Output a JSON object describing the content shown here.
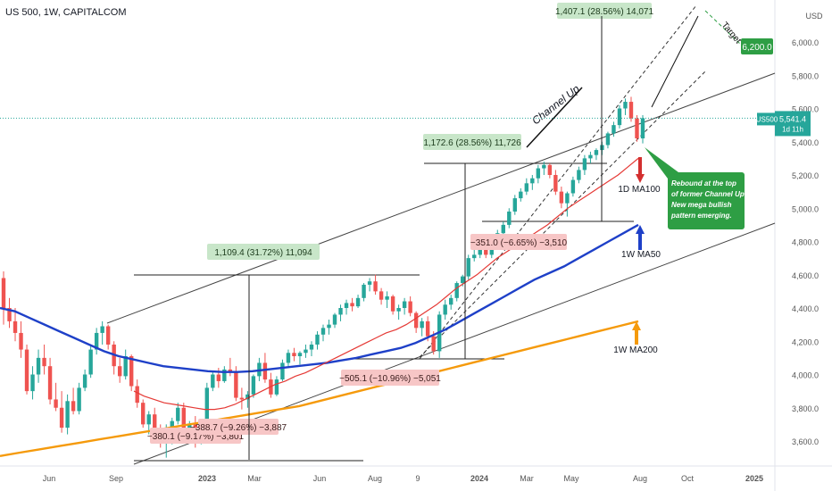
{
  "chart_data": {
    "type": "candlestick",
    "title": "US 500, 1W, CAPITALCOM",
    "currency": "USD",
    "symbol": "US500",
    "last_price": "5,541.4",
    "countdown": "1d 11h",
    "y_ticks": [
      3600,
      3800,
      4000,
      4200,
      4400,
      4600,
      4800,
      5000,
      5200,
      5400,
      5600,
      5800,
      6000
    ],
    "y_tick_labels": [
      "3,600.0",
      "3,800.0",
      "4,000.0",
      "4,200.0",
      "4,400.0",
      "4,600.0",
      "4,800.0",
      "5,000.0",
      "5,200.0",
      "5,400.0",
      "5,600.0",
      "5,800.0",
      "6,000.0"
    ],
    "x_ticks": [
      "Jun",
      "Sep",
      "2023",
      "Mar",
      "Jun",
      "Aug",
      "9",
      "2024",
      "Mar",
      "May",
      "Aug",
      "Oct",
      "2025"
    ],
    "ylim": [
      3450,
      6200
    ],
    "candles": [
      [
        4580,
        4620,
        4300,
        4400
      ],
      [
        4400,
        4460,
        4280,
        4320
      ],
      [
        4320,
        4400,
        4200,
        4250
      ],
      [
        4250,
        4320,
        4100,
        4150
      ],
      [
        4150,
        4180,
        3880,
        3900
      ],
      [
        3900,
        4050,
        3850,
        4000
      ],
      [
        4000,
        4150,
        3950,
        4100
      ],
      [
        4100,
        4180,
        4000,
        4050
      ],
      [
        4050,
        4100,
        3820,
        3850
      ],
      [
        3850,
        3950,
        3780,
        3800
      ],
      [
        3800,
        3900,
        3650,
        3680
      ],
      [
        3680,
        3880,
        3640,
        3840
      ],
      [
        3840,
        3920,
        3760,
        3780
      ],
      [
        3780,
        3950,
        3760,
        3920
      ],
      [
        3920,
        4030,
        3900,
        4000
      ],
      [
        4000,
        4180,
        3980,
        4150
      ],
      [
        4150,
        4280,
        4120,
        4250
      ],
      [
        4250,
        4320,
        4180,
        4290
      ],
      [
        4290,
        4300,
        4150,
        4180
      ],
      [
        4180,
        4200,
        4000,
        4050
      ],
      [
        4050,
        4100,
        3950,
        3990
      ],
      [
        3990,
        4150,
        3970,
        4110
      ],
      [
        4110,
        4120,
        3900,
        3930
      ],
      [
        3930,
        3970,
        3800,
        3830
      ],
      [
        3830,
        3850,
        3680,
        3700
      ],
      [
        3700,
        3780,
        3640,
        3760
      ],
      [
        3760,
        3800,
        3620,
        3650
      ],
      [
        3650,
        3700,
        3560,
        3590
      ],
      [
        3590,
        3700,
        3500,
        3600
      ],
      [
        3600,
        3740,
        3580,
        3720
      ],
      [
        3720,
        3830,
        3700,
        3800
      ],
      [
        3800,
        3830,
        3640,
        3660
      ],
      [
        3660,
        3720,
        3600,
        3700
      ],
      [
        3700,
        3750,
        3560,
        3590
      ],
      [
        3590,
        3720,
        3580,
        3700
      ],
      [
        3700,
        3950,
        3690,
        3920
      ],
      [
        3920,
        4020,
        3900,
        4000
      ],
      [
        4000,
        4040,
        3920,
        3960
      ],
      [
        3960,
        4050,
        3950,
        4030
      ],
      [
        4030,
        4100,
        3990,
        4020
      ],
      [
        4020,
        4050,
        3840,
        3860
      ],
      [
        3860,
        3920,
        3790,
        3850
      ],
      [
        3850,
        3900,
        3800,
        3880
      ],
      [
        3880,
        4000,
        3860,
        3990
      ],
      [
        3990,
        4100,
        3960,
        4070
      ],
      [
        4070,
        4130,
        3950,
        3970
      ],
      [
        3970,
        4010,
        3860,
        3880
      ],
      [
        3880,
        3990,
        3870,
        3970
      ],
      [
        3970,
        4090,
        3960,
        4070
      ],
      [
        4070,
        4150,
        4050,
        4130
      ],
      [
        4130,
        4160,
        4080,
        4110
      ],
      [
        4110,
        4140,
        4060,
        4130
      ],
      [
        4130,
        4180,
        4100,
        4150
      ],
      [
        4150,
        4200,
        4110,
        4180
      ],
      [
        4180,
        4260,
        4150,
        4240
      ],
      [
        4240,
        4300,
        4200,
        4280
      ],
      [
        4280,
        4330,
        4240,
        4300
      ],
      [
        4300,
        4370,
        4280,
        4360
      ],
      [
        4360,
        4420,
        4320,
        4400
      ],
      [
        4400,
        4450,
        4360,
        4430
      ],
      [
        4430,
        4460,
        4380,
        4410
      ],
      [
        4410,
        4480,
        4400,
        4460
      ],
      [
        4460,
        4550,
        4440,
        4540
      ],
      [
        4540,
        4580,
        4500,
        4560
      ],
      [
        4560,
        4600,
        4480,
        4500
      ],
      [
        4500,
        4520,
        4420,
        4450
      ],
      [
        4450,
        4500,
        4400,
        4470
      ],
      [
        4470,
        4480,
        4360,
        4380
      ],
      [
        4380,
        4420,
        4330,
        4400
      ],
      [
        4400,
        4460,
        4360,
        4440
      ],
      [
        4440,
        4470,
        4350,
        4370
      ],
      [
        4370,
        4380,
        4250,
        4280
      ],
      [
        4280,
        4340,
        4230,
        4320
      ],
      [
        4320,
        4350,
        4200,
        4230
      ],
      [
        4230,
        4260,
        4120,
        4140
      ],
      [
        4140,
        4380,
        4100,
        4360
      ],
      [
        4360,
        4450,
        4330,
        4420
      ],
      [
        4420,
        4480,
        4390,
        4460
      ],
      [
        4460,
        4560,
        4440,
        4550
      ],
      [
        4550,
        4600,
        4530,
        4590
      ],
      [
        4590,
        4720,
        4570,
        4700
      ],
      [
        4700,
        4760,
        4680,
        4720
      ],
      [
        4720,
        4800,
        4700,
        4780
      ],
      [
        4780,
        4820,
        4700,
        4720
      ],
      [
        4720,
        4800,
        4700,
        4790
      ],
      [
        4790,
        4870,
        4770,
        4850
      ],
      [
        4850,
        4920,
        4830,
        4900
      ],
      [
        4900,
        5000,
        4880,
        4980
      ],
      [
        4980,
        5080,
        4960,
        5060
      ],
      [
        5060,
        5120,
        5040,
        5100
      ],
      [
        5100,
        5180,
        5080,
        5150
      ],
      [
        5150,
        5200,
        5110,
        5180
      ],
      [
        5180,
        5260,
        5150,
        5240
      ],
      [
        5240,
        5280,
        5200,
        5260
      ],
      [
        5260,
        5270,
        5180,
        5200
      ],
      [
        5200,
        5230,
        5080,
        5100
      ],
      [
        5100,
        5130,
        5000,
        5030
      ],
      [
        5030,
        5100,
        4950,
        5090
      ],
      [
        5090,
        5190,
        5070,
        5170
      ],
      [
        5170,
        5250,
        5150,
        5230
      ],
      [
        5230,
        5320,
        5200,
        5300
      ],
      [
        5300,
        5340,
        5270,
        5320
      ],
      [
        5320,
        5360,
        5290,
        5350
      ],
      [
        5350,
        5400,
        5320,
        5380
      ],
      [
        5380,
        5460,
        5360,
        5450
      ],
      [
        5450,
        5520,
        5430,
        5500
      ],
      [
        5500,
        5620,
        5480,
        5600
      ],
      [
        5600,
        5660,
        5560,
        5640
      ],
      [
        5640,
        5670,
        5520,
        5540
      ],
      [
        5540,
        5560,
        5400,
        5420
      ],
      [
        5420,
        5560,
        5390,
        5541.4
      ]
    ],
    "ma_1d_100": [
      3900,
      3870,
      3850,
      3830,
      3820,
      3810,
      3800,
      3790,
      3790,
      3800,
      3820,
      3850,
      3880,
      3910,
      3940,
      3960,
      3990,
      4010,
      4040,
      4070,
      4100,
      4130,
      4160,
      4190,
      4220,
      4250,
      4270,
      4300,
      4340,
      4380,
      4420,
      4470,
      4520,
      4560,
      4600,
      4650,
      4700,
      4740,
      4780,
      4820,
      4860,
      4900,
      4950,
      5000,
      5040,
      5080,
      5120,
      5160,
      5200,
      5250,
      5300
    ],
    "ma_1w_50": [
      4400,
      4380,
      4340,
      4300,
      4260,
      4220,
      4180,
      4140,
      4110,
      4090,
      4070,
      4050,
      4040,
      4030,
      4020,
      4015,
      4015,
      4020,
      4030,
      4040,
      4050,
      4060,
      4070,
      4085,
      4100,
      4120,
      4140,
      4160,
      4190,
      4230,
      4270,
      4320,
      4370,
      4420,
      4470,
      4520,
      4570,
      4610,
      4650,
      4700,
      4750,
      4800,
      4850,
      4900
    ],
    "ma_1w_200": [
      3510,
      3530,
      3550,
      3570,
      3590,
      3610,
      3630,
      3650,
      3670,
      3690,
      3710,
      3730,
      3750,
      3770,
      3790,
      3810,
      3840,
      3870,
      3900,
      3930,
      3960,
      3990,
      4020,
      4050,
      4080,
      4110,
      4140,
      4170,
      4200,
      4230,
      4260,
      4290,
      4320
    ],
    "annotations": {
      "box_1": "1,109.4 (31.72%) 11,094",
      "box_2": "1,172.6 (28.56%) 11,726",
      "box_3": "1,407.1 (28.56%) 14,071",
      "box_neg_1": "−380.1 (−9.17%) −3,801",
      "box_neg_2": "−388.7 (−9.26%) −3,887",
      "box_neg_3": "−505.1 (−10.96%) −5,051",
      "box_neg_4": "−351.0 (−6.65%) −3,510",
      "channel_up": "Channel Up",
      "target_label": "Target",
      "target_value": "6,200.0",
      "label_1d_ma100": "1D MA100",
      "label_1w_ma50": "1W MA50",
      "label_1w_ma200": "1W MA200",
      "note": "Rebound at the top of former Channel Up. New mega bullish pattern emerging."
    },
    "colors": {
      "up": "#26a69a",
      "down": "#ef5350",
      "ma100": "#e53935",
      "ma50": "#1e40c8",
      "ma200": "#f59a0c",
      "green_label": "#2e9e44",
      "price_label": "#26a69a"
    }
  }
}
